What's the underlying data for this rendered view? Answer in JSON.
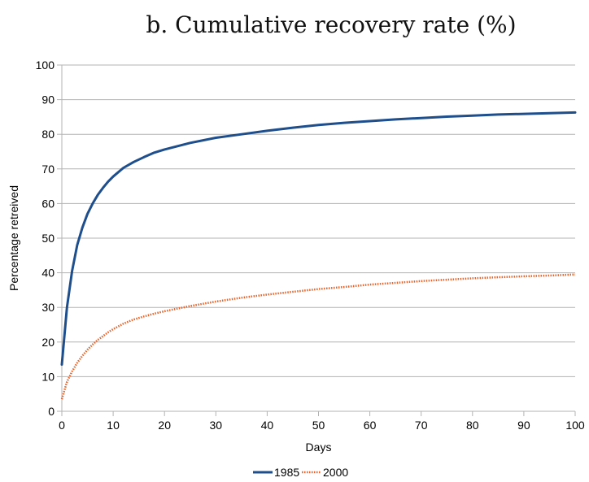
{
  "chart_data": {
    "type": "line",
    "title": "b. Cumulative recovery rate (%)",
    "xlabel": "Days",
    "ylabel": "Percentage retreived",
    "xlim": [
      0,
      100
    ],
    "ylim": [
      0,
      100
    ],
    "xticks": [
      0,
      10,
      20,
      30,
      40,
      50,
      60,
      70,
      80,
      90,
      100
    ],
    "yticks": [
      0,
      10,
      20,
      30,
      40,
      50,
      60,
      70,
      80,
      90,
      100
    ],
    "grid": "horizontal",
    "legend": "bottom",
    "series": [
      {
        "name": "1985",
        "color": "#1f4e8c",
        "style": "solid",
        "x": [
          0,
          1,
          2,
          3,
          4,
          5,
          6,
          7,
          8,
          9,
          10,
          12,
          14,
          16,
          18,
          20,
          25,
          30,
          35,
          40,
          45,
          50,
          55,
          60,
          65,
          70,
          75,
          80,
          85,
          90,
          95,
          100
        ],
        "y": [
          13.5,
          30,
          40.5,
          48,
          53,
          57,
          60,
          62.5,
          64.5,
          66.3,
          67.8,
          70.3,
          72,
          73.4,
          74.7,
          75.6,
          77.5,
          79,
          80,
          81,
          81.9,
          82.7,
          83.3,
          83.8,
          84.3,
          84.7,
          85.1,
          85.4,
          85.7,
          85.9,
          86.1,
          86.3
        ]
      },
      {
        "name": "2000",
        "color": "#e8622a",
        "style": "dotted",
        "x": [
          0,
          1,
          2,
          3,
          4,
          5,
          6,
          7,
          8,
          9,
          10,
          12,
          14,
          16,
          18,
          20,
          25,
          30,
          35,
          40,
          45,
          50,
          55,
          60,
          65,
          70,
          75,
          80,
          85,
          90,
          95,
          100
        ],
        "y": [
          3.5,
          8.5,
          11.5,
          14,
          16,
          17.8,
          19.3,
          20.6,
          21.7,
          22.8,
          23.7,
          25.3,
          26.5,
          27.4,
          28.2,
          28.9,
          30.4,
          31.7,
          32.8,
          33.7,
          34.5,
          35.3,
          35.9,
          36.6,
          37.1,
          37.6,
          38,
          38.4,
          38.7,
          39,
          39.2,
          39.5
        ]
      }
    ]
  }
}
